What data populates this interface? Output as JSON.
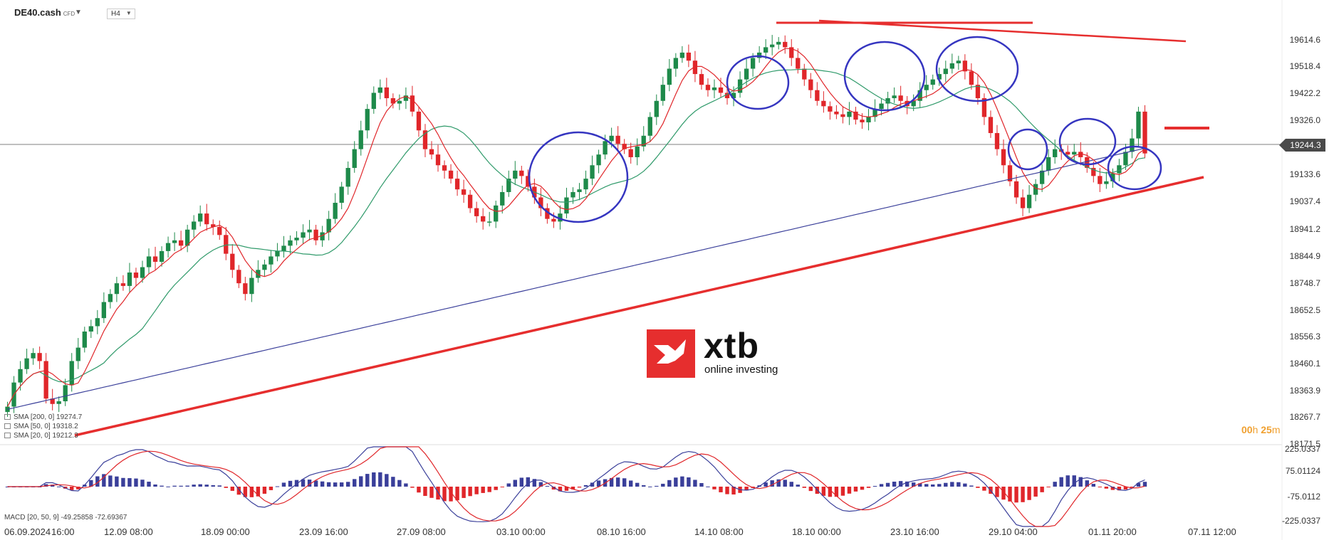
{
  "header": {
    "symbol": "DE40.cash",
    "badge": "CFD",
    "timeframe": "H4"
  },
  "current_price": "19244.3",
  "legend": [
    {
      "label": "SMA [200, 0]",
      "value": "19274.7"
    },
    {
      "label": "SMA [50, 0]",
      "value": "19318.2"
    },
    {
      "label": "SMA [20, 0]",
      "value": "19212.3"
    }
  ],
  "macd_label": "MACD [20, 50, 9]",
  "macd_values": [
    "-49.25858",
    "-72.69367"
  ],
  "timer": {
    "hours": "00",
    "h": "h",
    "minutes": "25",
    "m": "m"
  },
  "logo": {
    "name": "xtb",
    "tagline": "online investing"
  },
  "colors": {
    "bull": "#1e8a4a",
    "bear": "#e0262a",
    "sma20": "#e0262a",
    "sma50": "#2f9a6a",
    "sma200": "#3a3f9a",
    "trendline": "#e62e2e",
    "ellipse": "#3535c0",
    "macd_line": "#3a3f9a",
    "signal_line": "#e0262a"
  },
  "chart_data": {
    "type": "candlestick",
    "y_ticks": [
      "19614.6",
      "19518.4",
      "19422.2",
      "19326.0",
      "19133.6",
      "19037.4",
      "18941.2",
      "18844.9",
      "18748.7",
      "18652.5",
      "18556.3",
      "18460.1",
      "18363.9",
      "18267.7",
      "18171.5"
    ],
    "ylim": [
      18171.5,
      19710
    ],
    "x_ticks": [
      "06.09.2024",
      "16:00",
      "12.09 08:00",
      "18.09 00:00",
      "23.09 16:00",
      "27.09 08:00",
      "03.10 00:00",
      "08.10 16:00",
      "14.10 08:00",
      "18.10 00:00",
      "23.10 16:00",
      "29.10 04:00",
      "01.11 20:00",
      "07.11 12:00"
    ],
    "closes": [
      18300,
      18390,
      18440,
      18480,
      18500,
      18470,
      18330,
      18310,
      18320,
      18380,
      18470,
      18520,
      18580,
      18600,
      18630,
      18690,
      18720,
      18760,
      18750,
      18800,
      18780,
      18820,
      18860,
      18840,
      18880,
      18910,
      18920,
      18900,
      18960,
      18990,
      19020,
      18980,
      18970,
      18940,
      18870,
      18810,
      18760,
      18720,
      18780,
      18810,
      18830,
      18860,
      18880,
      18900,
      18920,
      18930,
      18950,
      18960,
      18920,
      18950,
      19000,
      19060,
      19120,
      19190,
      19260,
      19330,
      19410,
      19470,
      19490,
      19450,
      19430,
      19440,
      19460,
      19400,
      19330,
      19260,
      19240,
      19200,
      19180,
      19150,
      19110,
      19090,
      19040,
      19010,
      18990,
      18990,
      19050,
      19100,
      19150,
      19180,
      19160,
      19120,
      19080,
      19040,
      19000,
      18990,
      19020,
      19080,
      19100,
      19110,
      19150,
      19200,
      19240,
      19290,
      19310,
      19280,
      19260,
      19230,
      19270,
      19310,
      19380,
      19440,
      19500,
      19560,
      19600,
      19620,
      19590,
      19540,
      19500,
      19480,
      19490,
      19470,
      19450,
      19470,
      19520,
      19560,
      19600,
      19620,
      19640,
      19650,
      19660,
      19640,
      19600,
      19560,
      19520,
      19480,
      19440,
      19420,
      19400,
      19390,
      19380,
      19400,
      19370,
      19360,
      19380,
      19410,
      19430,
      19450,
      19460,
      19440,
      19420,
      19440,
      19480,
      19500,
      19520,
      19540,
      19560,
      19580,
      19590,
      19550,
      19500,
      19450,
      19380,
      19320,
      19260,
      19200,
      19140,
      19080,
      19040,
      19090,
      19130,
      19180,
      19230,
      19260,
      19250,
      19240,
      19250,
      19230,
      19190,
      19160,
      19130,
      19140,
      19170,
      19200,
      19250,
      19300,
      19400,
      19244
    ]
  }
}
